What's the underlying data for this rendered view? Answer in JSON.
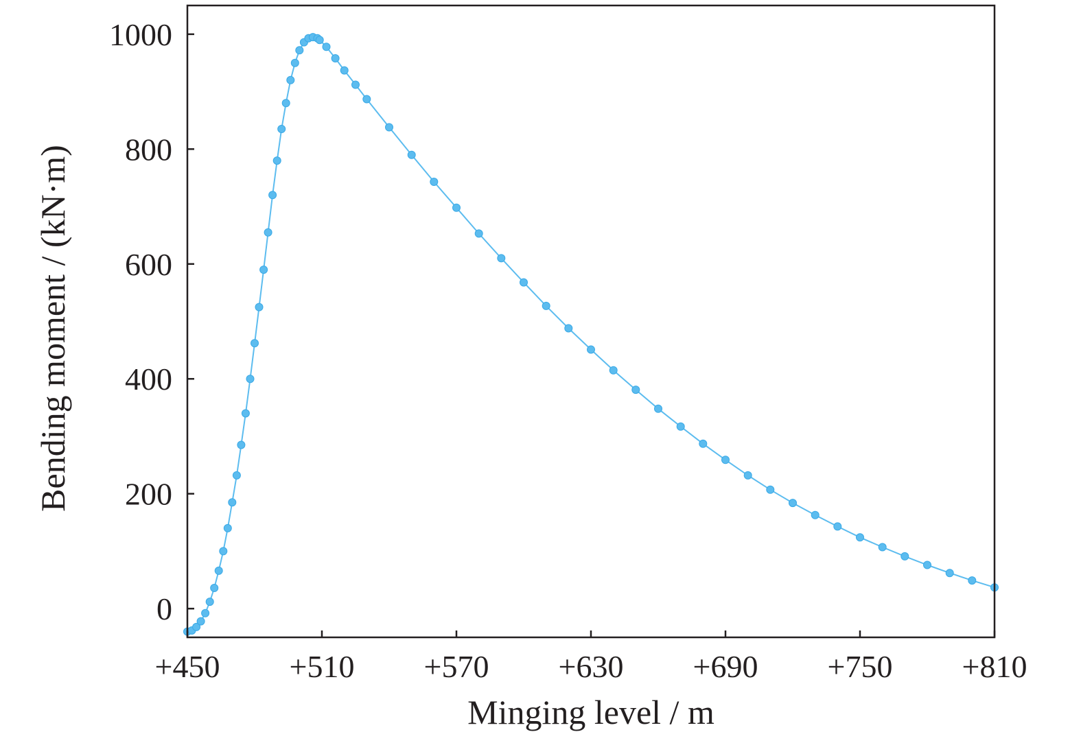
{
  "chart_data": {
    "type": "line",
    "title": "",
    "xlabel": "Minging level / m",
    "ylabel": "Bending moment / (kN·m)",
    "xlim": [
      450,
      810
    ],
    "ylim": [
      -50,
      1050
    ],
    "x_ticks": [
      450,
      510,
      570,
      630,
      690,
      750,
      810
    ],
    "x_tick_labels": [
      "+450",
      "+510",
      "+570",
      "+630",
      "+690",
      "+750",
      "+810"
    ],
    "y_ticks": [
      0,
      200,
      400,
      600,
      800,
      1000
    ],
    "y_tick_labels": [
      "0",
      "200",
      "400",
      "600",
      "800",
      "1000"
    ],
    "grid": false,
    "legend": "none",
    "series": [
      {
        "color": "#5cbcef",
        "marker": "circle",
        "x": [
          450,
          452,
          454,
          456,
          458,
          460,
          462,
          464,
          466,
          468,
          470,
          472,
          474,
          476,
          478,
          480,
          482,
          484,
          486,
          488,
          490,
          492,
          494,
          496,
          498,
          500,
          502,
          504,
          506,
          508,
          509,
          512,
          516,
          520,
          525,
          530,
          540,
          550,
          560,
          570,
          580,
          590,
          600,
          610,
          620,
          630,
          640,
          650,
          660,
          670,
          680,
          690,
          700,
          710,
          720,
          730,
          740,
          750,
          760,
          770,
          780,
          790,
          800,
          810
        ],
        "y": [
          -40,
          -38,
          -32,
          -22,
          -8,
          12,
          36,
          66,
          100,
          140,
          185,
          232,
          285,
          340,
          400,
          462,
          525,
          590,
          655,
          720,
          780,
          835,
          880,
          920,
          950,
          972,
          986,
          993,
          995,
          993,
          990,
          978,
          958,
          937,
          912,
          887,
          838,
          790,
          743,
          698,
          653,
          610,
          568,
          527,
          488,
          451,
          415,
          381,
          348,
          317,
          287,
          259,
          232,
          207,
          184,
          163,
          143,
          124,
          107,
          91,
          76,
          62,
          49,
          37
        ]
      }
    ]
  }
}
